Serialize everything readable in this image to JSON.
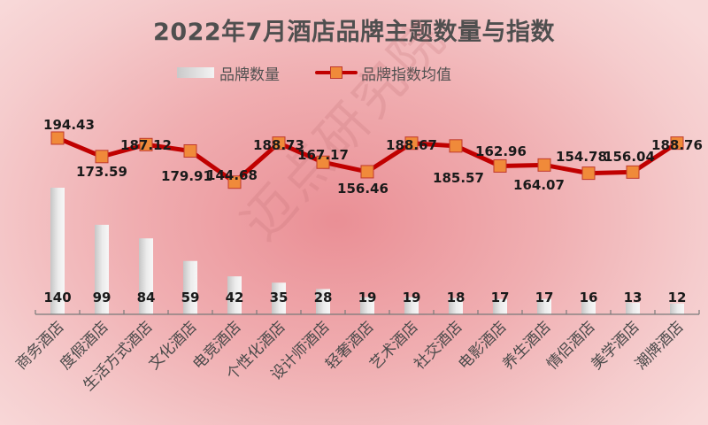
{
  "title": "2022年7月酒店品牌主题数量与指数",
  "legend": {
    "bar_label": "品牌数量",
    "line_label": "品牌指数均值"
  },
  "watermark": "迈点研究院",
  "colors": {
    "line": "#c00000",
    "marker_fill": "#f08a3a",
    "marker_stroke": "#c0392b",
    "bar_light": "#f4f4f4",
    "bar_dark": "#c9c9c9",
    "title": "#4f4f4f",
    "axis": "#7a7a7a"
  },
  "chart_data": {
    "type": "bar+line",
    "title": "2022年7月酒店品牌主题数量与指数",
    "categories": [
      "商务酒店",
      "度假酒店",
      "生活方式酒店",
      "文化酒店",
      "电竞酒店",
      "个性化酒店",
      "设计师酒店",
      "轻奢酒店",
      "艺术酒店",
      "社交酒店",
      "电影酒店",
      "养生酒店",
      "情侣酒店",
      "美学酒店",
      "潮牌酒店"
    ],
    "series": [
      {
        "name": "品牌数量",
        "type": "bar",
        "values": [
          140,
          99,
          84,
          59,
          42,
          35,
          28,
          19,
          19,
          18,
          17,
          17,
          16,
          13,
          12
        ]
      },
      {
        "name": "品牌指数均值",
        "type": "line",
        "values": [
          194.43,
          173.59,
          187.12,
          179.91,
          144.68,
          188.73,
          167.17,
          156.46,
          188.67,
          185.57,
          162.96,
          164.07,
          154.78,
          156.04,
          188.76
        ]
      }
    ],
    "xlabel": "",
    "ylabel": "",
    "grid": false,
    "legend_position": "top",
    "x_tick_rotation": -45
  }
}
